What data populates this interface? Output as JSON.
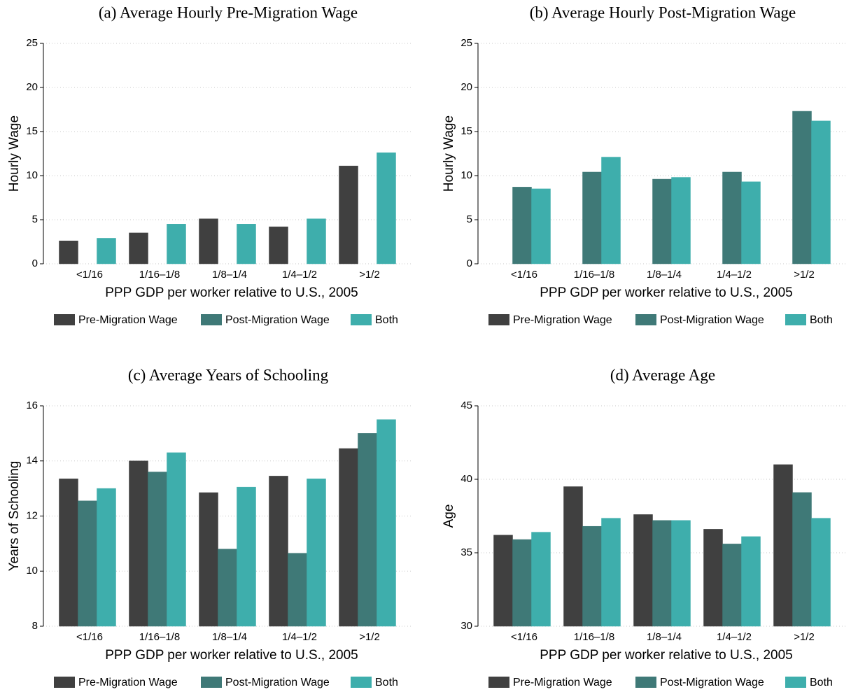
{
  "chart_data": [
    {
      "type": "bar",
      "title": "(a) Average Hourly Pre-Migration Wage",
      "categories": [
        "<1/16",
        "1/16–1/8",
        "1/8–1/4",
        "1/4–1/2",
        ">1/2"
      ],
      "series": [
        {
          "name": "Pre-Migration Wage",
          "color": "#404040",
          "values": [
            2.6,
            3.5,
            5.1,
            4.2,
            11.1
          ]
        },
        {
          "name": "Post-Migration Wage",
          "color": "#3f7977",
          "values": [
            null,
            null,
            null,
            null,
            null
          ]
        },
        {
          "name": "Both",
          "color": "#3eaeac",
          "values": [
            2.9,
            4.5,
            4.5,
            5.1,
            12.6
          ]
        }
      ],
      "xlabel": "PPP GDP per worker relative to U.S., 2005",
      "ylabel": "Hourly Wage",
      "ylim": [
        0,
        25
      ],
      "yticks": [
        0,
        5,
        10,
        15,
        20,
        25
      ],
      "grid": true,
      "legend": "bottom"
    },
    {
      "type": "bar",
      "title": "(b) Average Hourly Post-Migration Wage",
      "categories": [
        "<1/16",
        "1/16–1/8",
        "1/8–1/4",
        "1/4–1/2",
        ">1/2"
      ],
      "series": [
        {
          "name": "Pre-Migration Wage",
          "color": "#404040",
          "values": [
            null,
            null,
            null,
            null,
            null
          ]
        },
        {
          "name": "Post-Migration Wage",
          "color": "#3f7977",
          "values": [
            8.7,
            10.4,
            9.6,
            10.4,
            17.3
          ]
        },
        {
          "name": "Both",
          "color": "#3eaeac",
          "values": [
            8.5,
            12.1,
            9.8,
            9.3,
            16.2
          ]
        }
      ],
      "xlabel": "PPP GDP per worker relative to U.S., 2005",
      "ylabel": "Hourly Wage",
      "ylim": [
        0,
        25
      ],
      "yticks": [
        0,
        5,
        10,
        15,
        20,
        25
      ],
      "grid": true,
      "legend": "bottom"
    },
    {
      "type": "bar",
      "title": "(c) Average Years of Schooling",
      "categories": [
        "<1/16",
        "1/16–1/8",
        "1/8–1/4",
        "1/4–1/2",
        ">1/2"
      ],
      "series": [
        {
          "name": "Pre-Migration Wage",
          "color": "#404040",
          "values": [
            13.35,
            14.0,
            12.85,
            13.45,
            14.45
          ]
        },
        {
          "name": "Post-Migration Wage",
          "color": "#3f7977",
          "values": [
            12.55,
            13.6,
            10.8,
            10.65,
            15.0
          ]
        },
        {
          "name": "Both",
          "color": "#3eaeac",
          "values": [
            13.0,
            14.3,
            13.05,
            13.35,
            15.5
          ]
        }
      ],
      "xlabel": "PPP GDP per worker relative to U.S., 2005",
      "ylabel": "Years of Schooling",
      "ylim": [
        8,
        16
      ],
      "yticks": [
        8,
        10,
        12,
        14,
        16
      ],
      "grid": true,
      "legend": "bottom"
    },
    {
      "type": "bar",
      "title": "(d) Average Age",
      "categories": [
        "<1/16",
        "1/16–1/8",
        "1/8–1/4",
        "1/4–1/2",
        ">1/2"
      ],
      "series": [
        {
          "name": "Pre-Migration Wage",
          "color": "#404040",
          "values": [
            36.2,
            39.5,
            37.6,
            36.6,
            41.0
          ]
        },
        {
          "name": "Post-Migration Wage",
          "color": "#3f7977",
          "values": [
            35.9,
            36.8,
            37.2,
            35.6,
            39.1
          ]
        },
        {
          "name": "Both",
          "color": "#3eaeac",
          "values": [
            36.4,
            37.35,
            37.2,
            36.1,
            37.35
          ]
        }
      ],
      "xlabel": "PPP GDP per worker relative to U.S., 2005",
      "ylabel": "Age",
      "ylim": [
        30,
        45
      ],
      "yticks": [
        30,
        35,
        40,
        45
      ],
      "grid": true,
      "legend": "bottom"
    }
  ]
}
